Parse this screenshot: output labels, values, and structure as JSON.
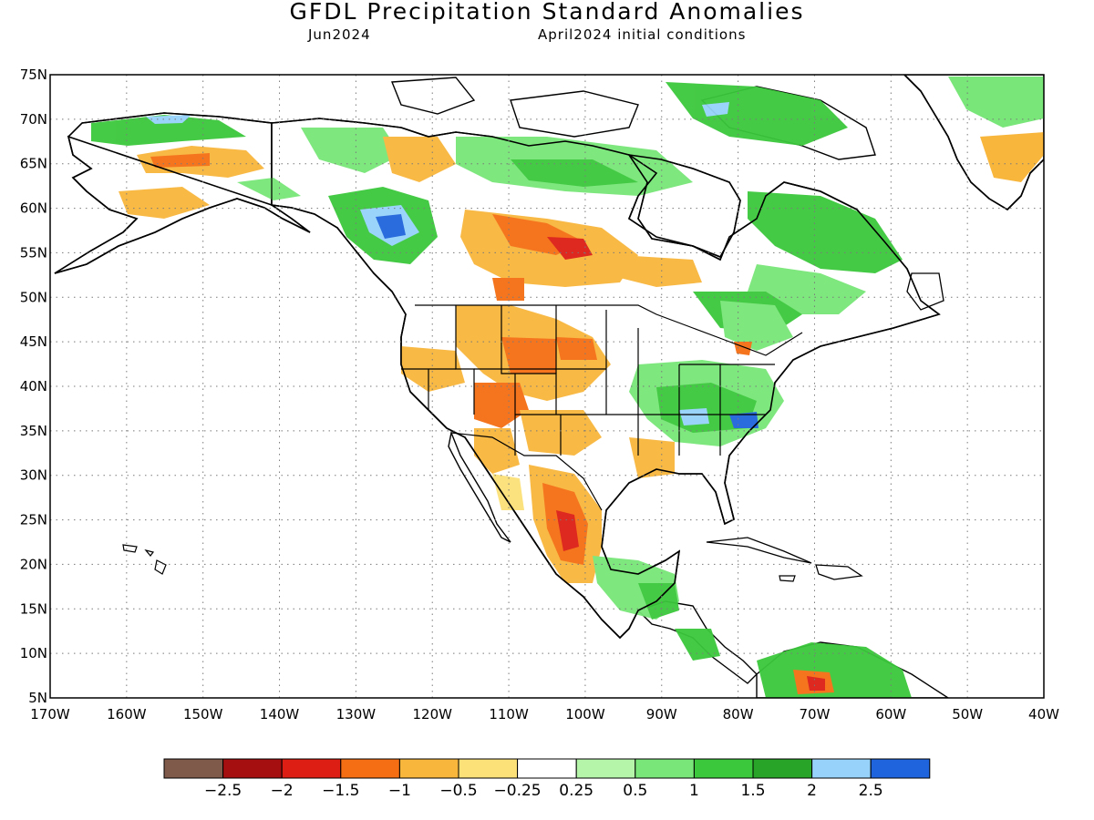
{
  "title": "GFDL Precipitation Standard Anomalies",
  "subtitle_left": "Jun2024",
  "subtitle_right": "April2024 initial conditions",
  "map": {
    "lon_range": [
      -170,
      -40
    ],
    "lat_range": [
      5,
      75
    ],
    "lat_labels": [
      "5N",
      "10N",
      "15N",
      "20N",
      "25N",
      "30N",
      "35N",
      "40N",
      "45N",
      "50N",
      "55N",
      "60N",
      "65N",
      "70N",
      "75N"
    ],
    "lon_labels": [
      "170W",
      "160W",
      "150W",
      "140W",
      "130W",
      "120W",
      "110W",
      "100W",
      "90W",
      "80W",
      "70W",
      "60W",
      "50W",
      "40W"
    ],
    "grid": "dotted",
    "land_color": "#ffffff",
    "ocean_color": "#ffffff"
  },
  "colorbar": {
    "colors": [
      "#7f5a4a",
      "#a50f0f",
      "#dc1e14",
      "#f56e14",
      "#f8b63c",
      "#fbe178",
      "#ffffff",
      "#b4f5aa",
      "#78e678",
      "#3cc83c",
      "#28a428",
      "#96d2fa",
      "#1f64dc"
    ],
    "labels": [
      "-2.5",
      "-2",
      "-1.5",
      "-1",
      "-0.5",
      "-0.25",
      "0.25",
      "0.5",
      "1",
      "1.5",
      "2",
      "2.5"
    ]
  }
}
